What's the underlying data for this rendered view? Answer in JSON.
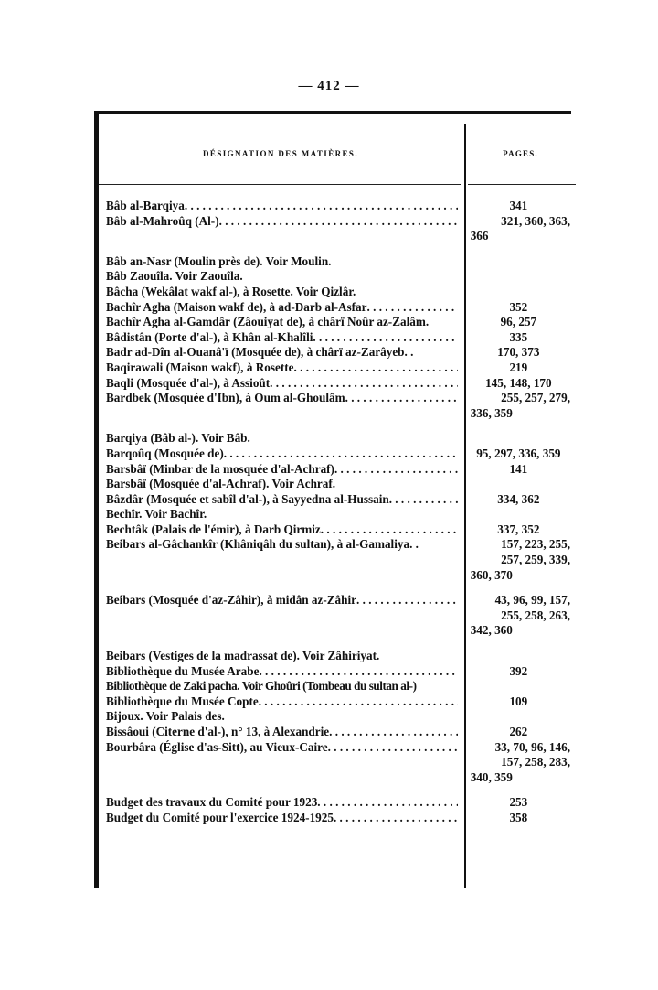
{
  "page_number": "— 412 —",
  "headers": {
    "designation": "DÉSIGNATION DES MATIÈRES.",
    "pages": "PAGES."
  },
  "entries": [
    {
      "text": "Bâb al-Barqiya",
      "pages": [
        "341"
      ]
    },
    {
      "text": "Bâb al-Mahroûq (Al-)",
      "pages": [
        "321,  360,  363,",
        "366"
      ]
    },
    {
      "text": "Bâb an-Nasr (Moulin près de). Voir Moulin.",
      "pages": []
    },
    {
      "text": "Bâb Zaouîla. Voir Zaouîla.",
      "pages": []
    },
    {
      "text": "Bâcha (Wekâlat wakf al-), à Rosette. Voir Qizlâr.",
      "pages": []
    },
    {
      "text": "Bachîr Agha (Maison wakf de), à ad-Darb al-Asfar",
      "pages": [
        "352"
      ]
    },
    {
      "text": "Bachîr Agha al-Gamdâr (Zâouiyat de), à chârï Noûr az-Zalâm.",
      "pages": [
        "96, 257"
      ],
      "no_leader": true
    },
    {
      "text": "Bâdistân (Porte d'al-), à Khân al-Khalîli",
      "pages": [
        "335"
      ]
    },
    {
      "text": "Badr ad-Dîn al-Ouanâ'ï (Mosquée de), à chârï az-Zarâyeb. .",
      "pages": [
        "170, 373"
      ],
      "no_leader": true
    },
    {
      "text": "Baqirawali (Maison wakf), à Rosette",
      "pages": [
        "219"
      ]
    },
    {
      "text": "Baqli (Mosquée d'al-), à Assioût",
      "pages": [
        "145, 148, 170"
      ]
    },
    {
      "text": "Bardbek (Mosquée d'Ibn), à Oum al-Ghoulâm",
      "pages": [
        "255,  257,  279,",
        "336, 359"
      ]
    },
    {
      "text": "Barqiya (Bâb al-). Voir Bâb.",
      "pages": []
    },
    {
      "text": "Barqoûq (Mosquée de)",
      "pages": [
        "95, 297, 336, 359"
      ]
    },
    {
      "text": "Barsbâï (Minbar de la mosquée d'al-Achraf)",
      "pages": [
        "141"
      ]
    },
    {
      "text": "Barsbâï (Mosquée d'al-Achraf). Voir Achraf.",
      "pages": []
    },
    {
      "text": "Bâzdâr (Mosquée et sabîl d'al-), à Sayyedna al-Hussain",
      "pages": [
        "334, 362"
      ]
    },
    {
      "text": "Bechîr. Voir Bachîr.",
      "pages": []
    },
    {
      "text": "Bechtâk (Palais de l'émir), à Darb Qirmiz",
      "pages": [
        "337, 352"
      ]
    },
    {
      "text": "Beibars al-Gâchankîr (Khâniqâh du sultan), à al-Gamaliya. .",
      "pages": [
        "157,  223,  255,",
        "257, 259, 339,",
        "360, 370"
      ],
      "no_leader": true
    },
    {
      "text": "Beibars (Mosquée d'az-Zâhir), à midân az-Zâhir",
      "pages": [
        "43, 96, 99, 157,",
        "255, 258, 263,",
        "342, 360"
      ]
    },
    {
      "text": "Beibars (Vestiges de la madrassat de). Voir Zâhiriyat.",
      "pages": []
    },
    {
      "text": "Bibliothèque du Musée Arabe",
      "pages": [
        "392"
      ]
    },
    {
      "text": "Bibliothèque de Zaki pacha. Voir Ghoûri (Tombeau du sultan al-)",
      "pages": [],
      "tight": true
    },
    {
      "text": "Bibliothèque du Musée Copte",
      "pages": [
        "109"
      ]
    },
    {
      "text": "Bijoux. Voir Palais des.",
      "pages": []
    },
    {
      "text": "Bissâoui (Citerne d'al-), n° 13, à Alexandrie",
      "pages": [
        "262"
      ]
    },
    {
      "text": "Bourbâra (Église d'as-Sitt), au Vieux-Caire",
      "pages": [
        "33, 70, 96, 146,",
        "157, 258, 283,",
        "340, 359"
      ]
    },
    {
      "text": "Budget des travaux du Comité pour 1923",
      "pages": [
        "253"
      ]
    },
    {
      "text": "Budget du Comité pour l'exercice 1924-1925",
      "pages": [
        "358"
      ]
    }
  ]
}
